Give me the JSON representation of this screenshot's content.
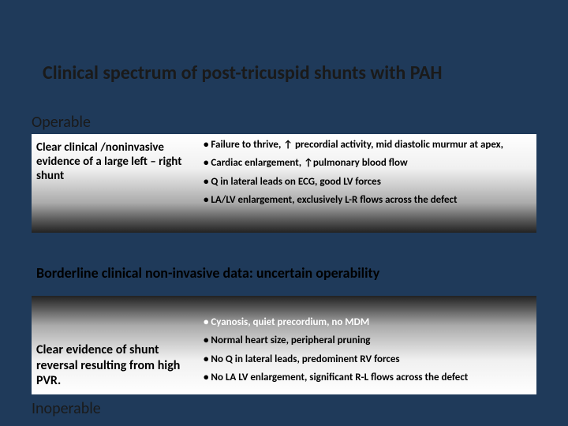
{
  "title": "Clinical spectrum of post-tricuspid shunts with PAH",
  "operable_label": "Operable",
  "inoperable_label": "Inoperable",
  "section1": {
    "left": "Clear clinical /noninvasive evidence of a large left – right shunt",
    "bullets": [
      "Failure to thrive, ↑ precordial activity, mid diastolic murmur at apex,",
      "Cardiac enlargement, ↑pulmonary blood flow",
      "Q in lateral leads on ECG, good LV forces",
      "LA/LV enlargement, exclusively L-R flows across the defect"
    ]
  },
  "middle_label": "Borderline clinical non-invasive data: uncertain operability",
  "section2": {
    "left": "Clear evidence of shunt reversal resulting from high PVR.",
    "bullets": [
      "Cyanosis, quiet precordium, no MDM",
      "Normal heart size, peripheral pruning",
      "No Q in lateral leads, predominent RV forces",
      "No LA LV enlargement, significant R-L flows across the defect"
    ]
  },
  "colors": {
    "background": "#1f3a5a",
    "text_dark": "#000000",
    "text_light": "#ffffff"
  }
}
